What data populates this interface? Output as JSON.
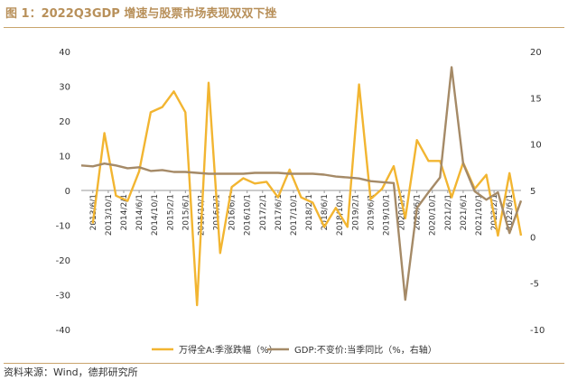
{
  "header": {
    "title": "图 1：2022Q3GDP 增速与股票市场表现双双下挫"
  },
  "footer": {
    "source": "资料来源：Wind，德邦研究所"
  },
  "chart_data": {
    "type": "line",
    "title": "",
    "xlabel": "",
    "ylabel": "",
    "y_left_lim": [
      -40,
      40
    ],
    "y_left_ticks": [
      40,
      30,
      20,
      10,
      0,
      -10,
      -20,
      -30,
      -40
    ],
    "y_right_lim": [
      -10,
      20
    ],
    "y_right_ticks": [
      20,
      15,
      10,
      5,
      0,
      -5,
      -10
    ],
    "grid": false,
    "legend_position": "bottom",
    "x_tick_labels": [
      "2013/6/1",
      "2013/10/1",
      "2014/2/1",
      "2014/6/1",
      "2014/10/1",
      "2015/2/1",
      "2015/6/1",
      "2015/10/1",
      "2016/2/1",
      "2016/6/1",
      "2016/10/1",
      "2017/2/1",
      "2017/6/1",
      "2017/10/1",
      "2018/2/1",
      "2018/6/1",
      "2018/10/1",
      "2019/2/1",
      "2019/6/1",
      "2019/10/1",
      "2020/2/1",
      "2020/6/1",
      "2020/10/1",
      "2021/2/1",
      "2021/6/1",
      "2021/10/1",
      "2022/2/1",
      "2022/6/1"
    ],
    "series": [
      {
        "name": "万得全A:季涨跌幅（%）",
        "axis": "left",
        "color": "#f2b531",
        "x": [
          "2013/6/1",
          "2013/9/1",
          "2013/12/1",
          "2014/3/1",
          "2014/6/1",
          "2014/9/1",
          "2014/12/1",
          "2015/3/1",
          "2015/6/1",
          "2015/9/1",
          "2015/12/1",
          "2016/3/1",
          "2016/6/1",
          "2016/9/1",
          "2016/12/1",
          "2017/3/1",
          "2017/6/1",
          "2017/9/1",
          "2017/12/1",
          "2018/3/1",
          "2018/6/1",
          "2018/9/1",
          "2018/12/1",
          "2019/3/1",
          "2019/6/1",
          "2019/9/1",
          "2019/12/1",
          "2020/3/1",
          "2020/6/1",
          "2020/9/1",
          "2020/12/1",
          "2021/3/1",
          "2021/6/1",
          "2021/9/1",
          "2021/12/1",
          "2022/3/1",
          "2022/6/1",
          "2022/9/1"
        ],
        "values": [
          -9.5,
          16.5,
          -1.5,
          -3.0,
          5.5,
          22.5,
          24.0,
          28.5,
          22.5,
          -33.0,
          31.0,
          -18.0,
          1.0,
          3.5,
          2.0,
          2.5,
          -2.0,
          6.0,
          -2.0,
          -3.5,
          -10.5,
          -5.0,
          -10.5,
          30.5,
          -2.5,
          0.5,
          7.0,
          -8.0,
          14.5,
          8.5,
          8.5,
          -2.0,
          8.0,
          0.5,
          4.5,
          -13.0,
          5.0,
          -13.0
        ]
      },
      {
        "name": "GDP:不变价:当季同比（%，右轴）",
        "axis": "right",
        "color": "#a58a67",
        "x": [
          "2013/3/1",
          "2013/6/1",
          "2013/9/1",
          "2013/12/1",
          "2014/3/1",
          "2014/6/1",
          "2014/9/1",
          "2014/12/1",
          "2015/3/1",
          "2015/6/1",
          "2015/9/1",
          "2015/12/1",
          "2016/3/1",
          "2016/6/1",
          "2016/9/1",
          "2016/12/1",
          "2017/3/1",
          "2017/6/1",
          "2017/9/1",
          "2017/12/1",
          "2018/3/1",
          "2018/6/1",
          "2018/9/1",
          "2018/12/1",
          "2019/3/1",
          "2019/6/1",
          "2019/9/1",
          "2019/12/1",
          "2020/3/1",
          "2020/6/1",
          "2020/9/1",
          "2020/12/1",
          "2021/3/1",
          "2021/6/1",
          "2021/9/1",
          "2021/12/1",
          "2022/3/1",
          "2022/6/1",
          "2022/9/1"
        ],
        "values": [
          7.7,
          7.6,
          7.9,
          7.7,
          7.4,
          7.5,
          7.1,
          7.2,
          7.0,
          7.0,
          6.9,
          6.8,
          6.8,
          6.8,
          6.8,
          6.9,
          6.9,
          6.9,
          6.8,
          6.8,
          6.8,
          6.7,
          6.5,
          6.4,
          6.3,
          6.0,
          5.9,
          5.8,
          -6.8,
          3.1,
          4.8,
          6.4,
          18.3,
          7.9,
          4.9,
          4.0,
          4.8,
          0.4,
          3.9
        ]
      }
    ]
  }
}
